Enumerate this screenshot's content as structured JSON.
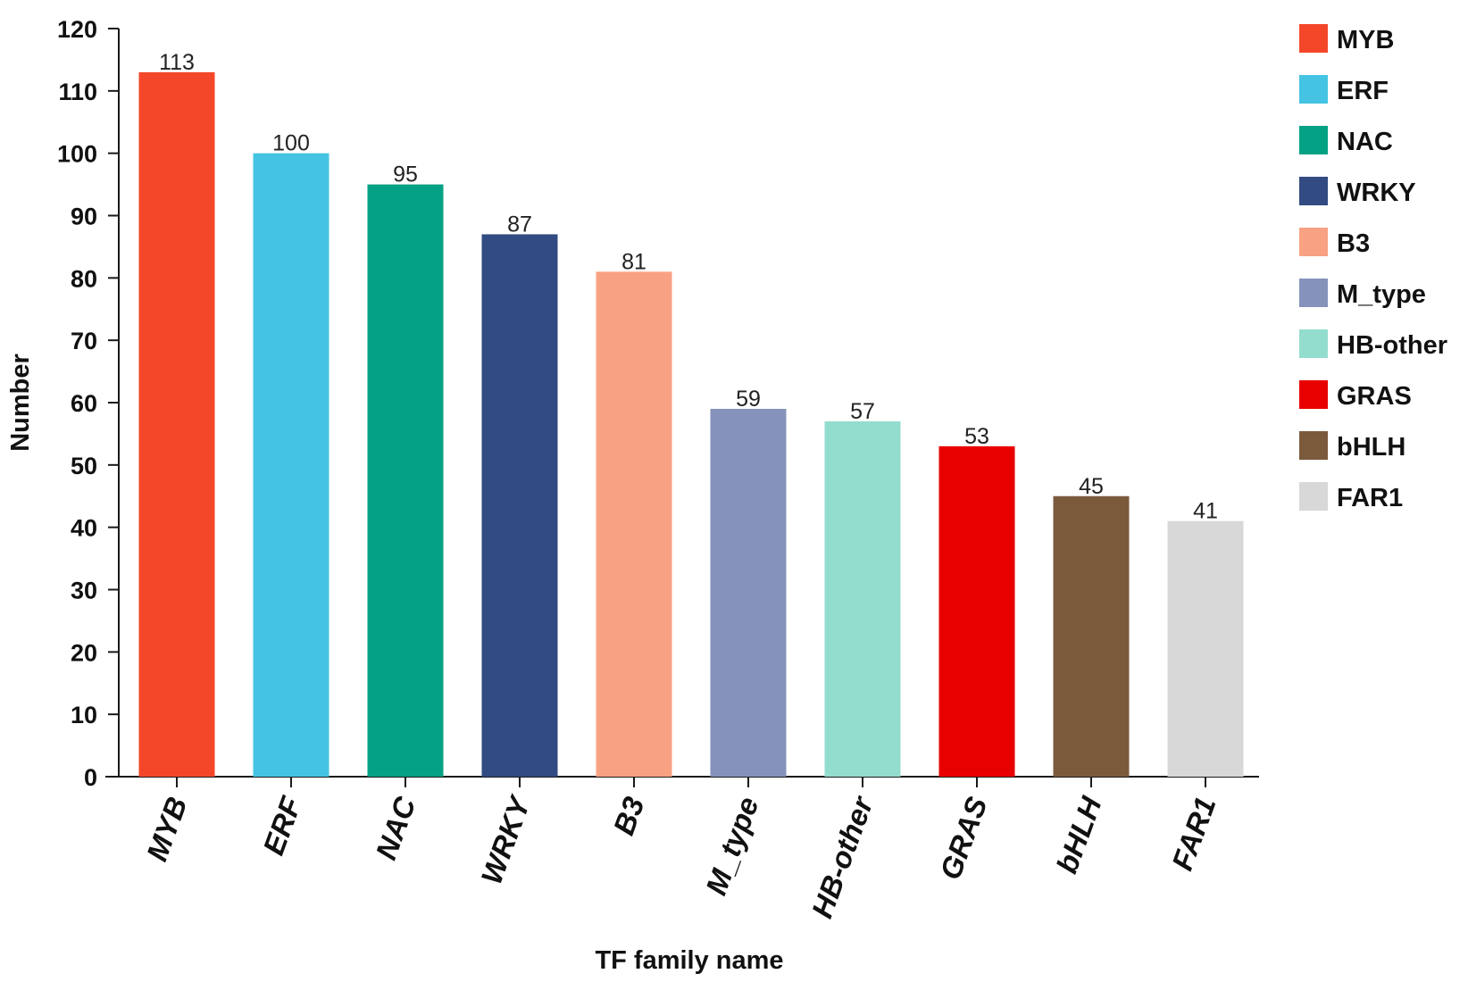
{
  "chart_data": {
    "type": "bar",
    "title": "",
    "xlabel": "TF family name",
    "ylabel": "Number",
    "categories": [
      "MYB",
      "ERF",
      "NAC",
      "WRKY",
      "B3",
      "M_type",
      "HB-other",
      "GRAS",
      "bHLH",
      "FAR1"
    ],
    "values": [
      113,
      100,
      95,
      87,
      81,
      59,
      57,
      53,
      45,
      41
    ],
    "data_labels": [
      "113",
      "100",
      "95",
      "87",
      "81",
      "59",
      "57",
      "53",
      "45",
      "41"
    ],
    "colors": [
      "#f4472a",
      "#44c4e2",
      "#05a184",
      "#324b82",
      "#f9a183",
      "#8593bb",
      "#93ddce",
      "#e80000",
      "#7b5a3c",
      "#d8d8d8"
    ],
    "ylim": [
      0,
      120
    ],
    "yticks": [
      0,
      10,
      20,
      30,
      40,
      50,
      60,
      70,
      80,
      90,
      100,
      110,
      120
    ],
    "grid": false,
    "legend": {
      "position": "right",
      "entries": [
        "MYB",
        "ERF",
        "NAC",
        "WRKY",
        "B3",
        "M_type",
        "HB-other",
        "GRAS",
        "bHLH",
        "FAR1"
      ]
    }
  }
}
